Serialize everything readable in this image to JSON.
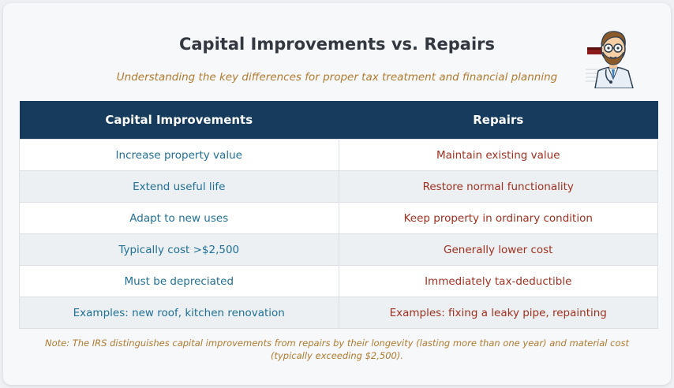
{
  "header": {
    "title": "Capital Improvements vs. Repairs",
    "subtitle": "Understanding the key differences for proper tax treatment and financial planning"
  },
  "table": {
    "columns": [
      "Capital Improvements",
      "Repairs"
    ],
    "rows": [
      [
        "Increase property value",
        "Maintain existing value"
      ],
      [
        "Extend useful life",
        "Restore normal functionality"
      ],
      [
        "Adapt to new uses",
        "Keep property in ordinary condition"
      ],
      [
        "Typically cost >$2,500",
        "Generally lower cost"
      ],
      [
        "Must be depreciated",
        "Immediately tax-deductible"
      ],
      [
        "Examples: new roof, kitchen renovation",
        "Examples: fixing a leaky pipe, repainting"
      ]
    ]
  },
  "note": "Note: The IRS distinguishes capital improvements from repairs by their longevity (lasting more than one year) and material cost (typically exceeding $2,500).",
  "colors": {
    "header_bg": "#163b5c",
    "capital_text": "#1f6f96",
    "repair_text": "#a03020",
    "accent": "#b07a2e"
  },
  "icons": [
    "doctor-avatar-icon"
  ]
}
